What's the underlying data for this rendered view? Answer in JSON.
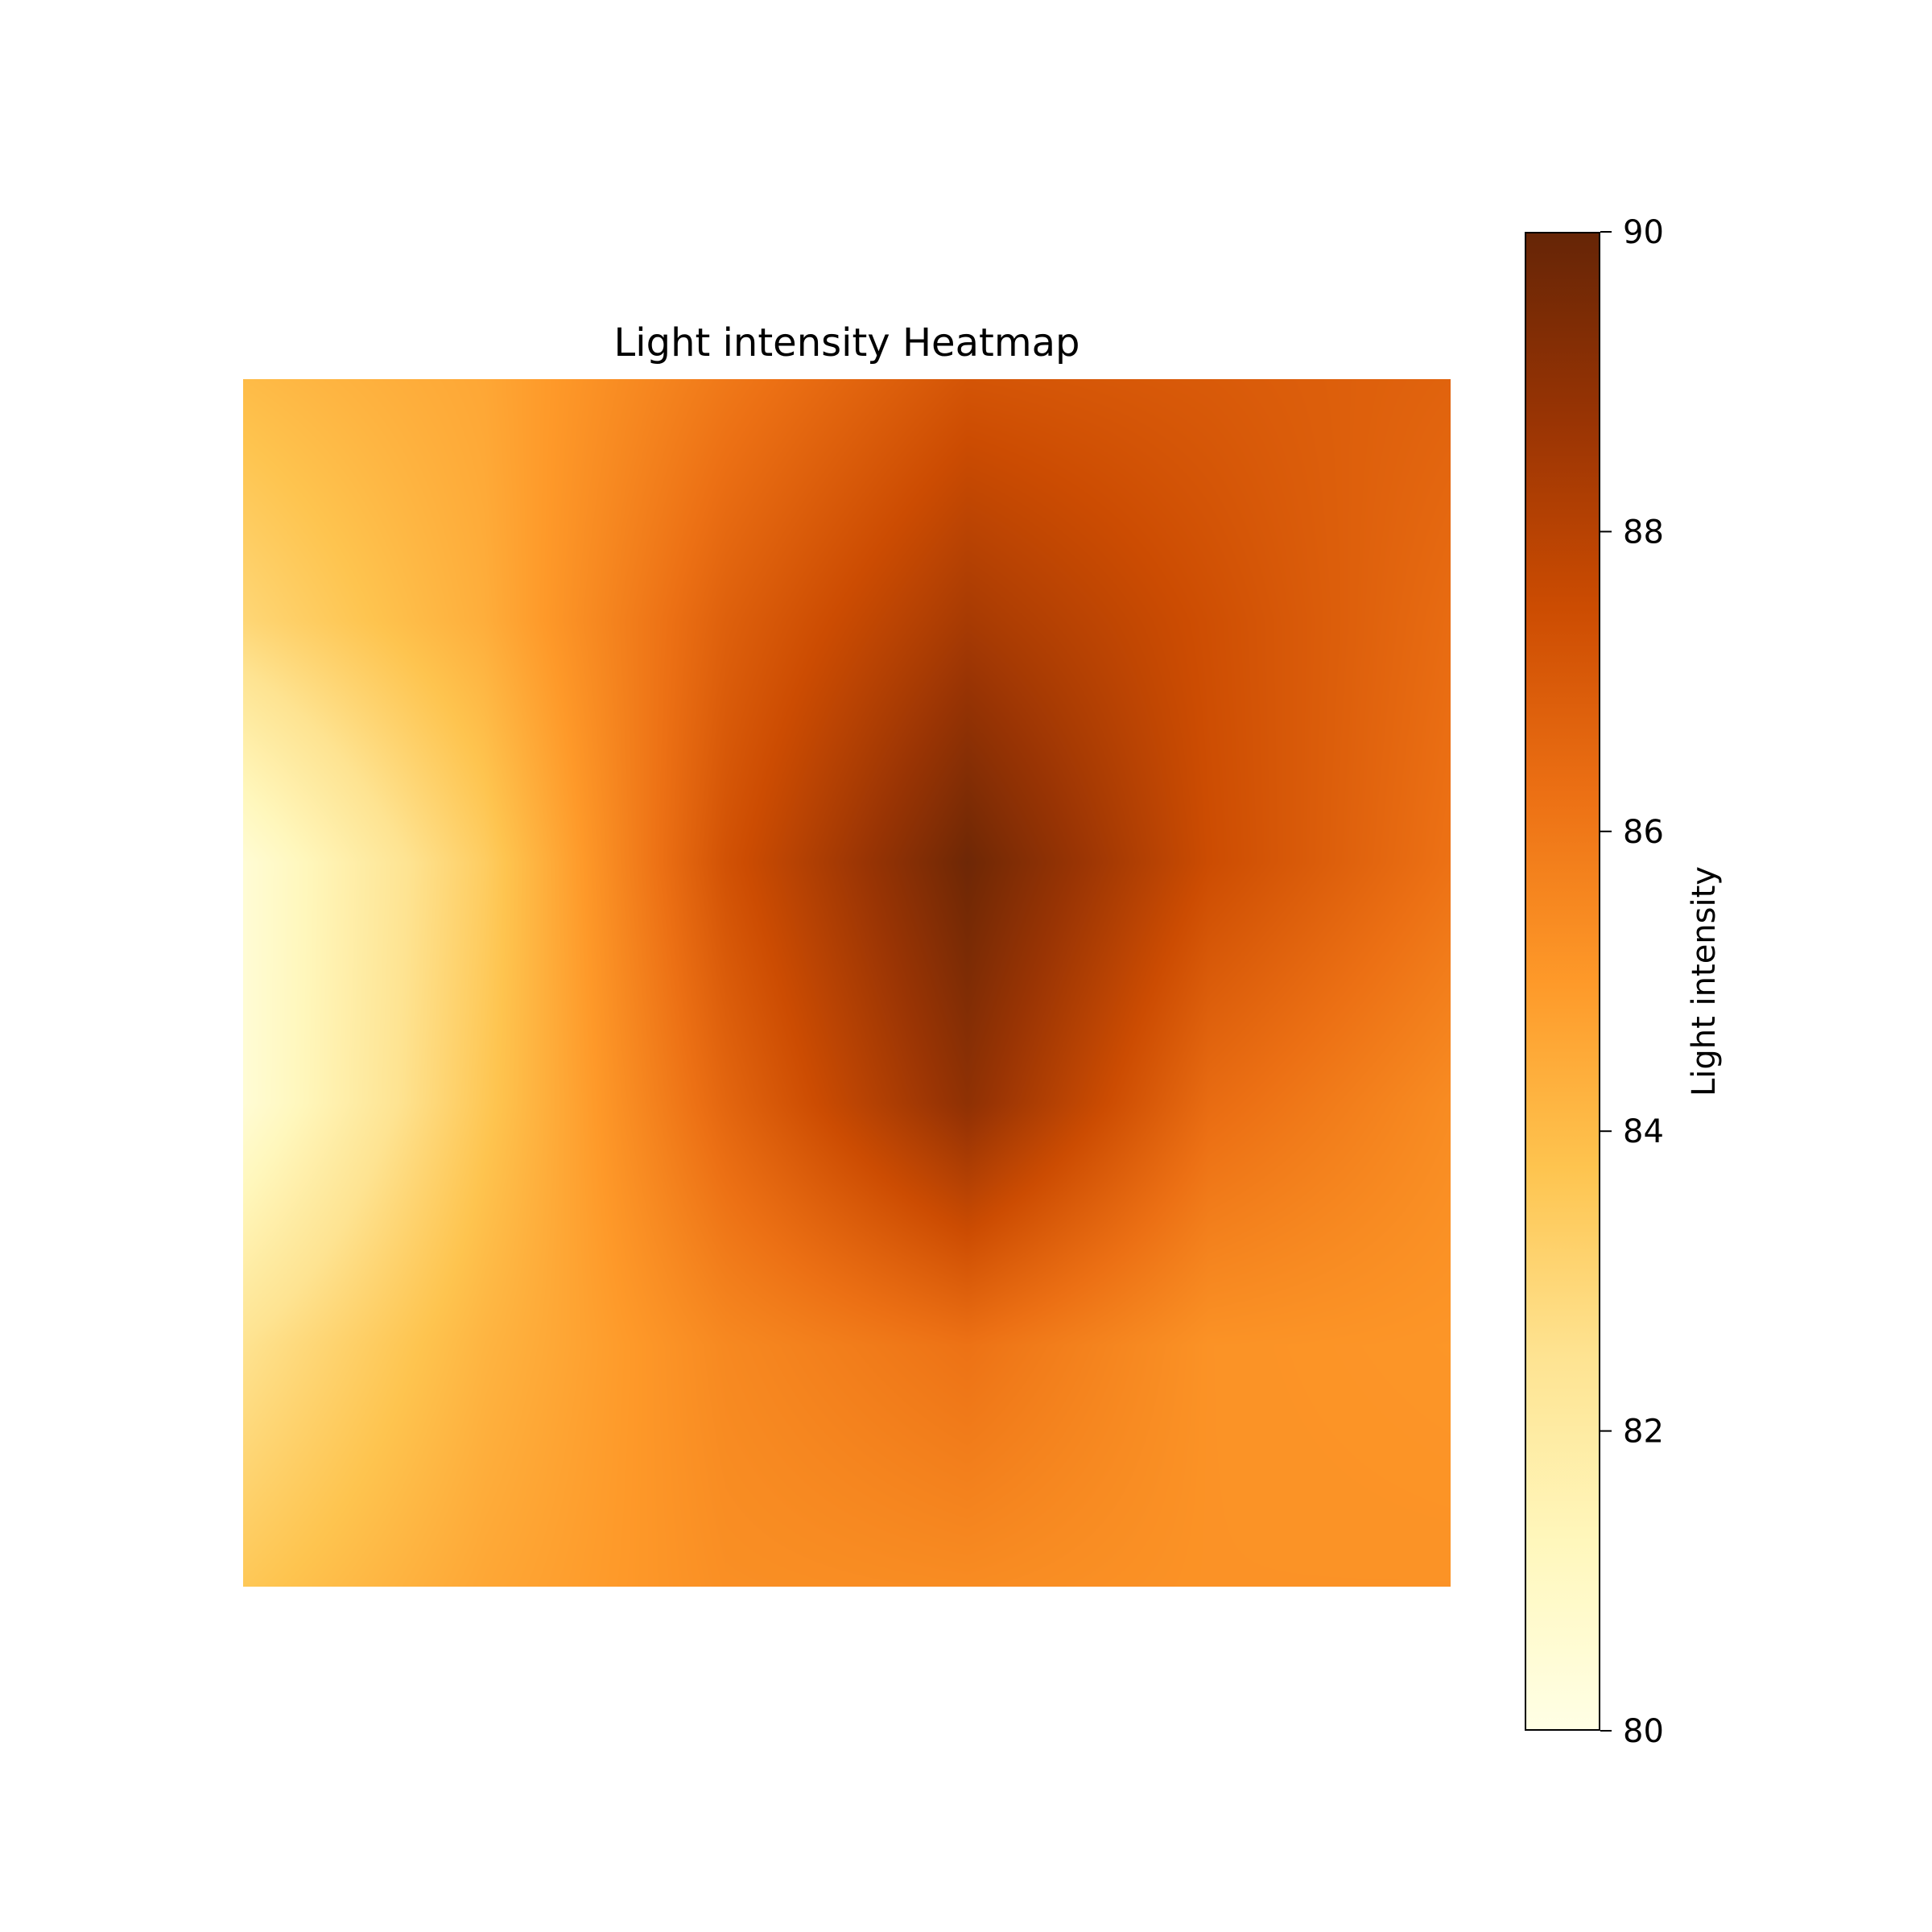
{
  "chart_data": {
    "type": "heatmap",
    "title": "Light intensity Heatmap",
    "colorbar": {
      "label": "Light intensity",
      "range": [
        80,
        90
      ],
      "ticks": [
        80,
        82,
        84,
        86,
        88,
        90
      ],
      "tick_labels": [
        "80",
        "82",
        "84",
        "86",
        "88",
        "90"
      ],
      "colormap": "YlOrBr",
      "colors": [
        "#ffffe5",
        "#fff7bc",
        "#fee391",
        "#fec44f",
        "#fe9929",
        "#ec7014",
        "#cc4c02",
        "#993404",
        "#662506"
      ]
    },
    "axes_visible": false,
    "grid": false,
    "z": [
      [
        84.0,
        84.6,
        86.0,
        87.2,
        87.0,
        86.7
      ],
      [
        83.0,
        84.4,
        86.8,
        88.4,
        87.4,
        86.4
      ],
      [
        80.5,
        83.4,
        87.3,
        89.8,
        87.5,
        86.2
      ],
      [
        80.5,
        83.6,
        86.6,
        89.0,
        86.4,
        85.4
      ],
      [
        82.5,
        84.2,
        85.5,
        86.2,
        85.2,
        85.1
      ],
      [
        83.6,
        84.6,
        85.3,
        85.4,
        85.2,
        85.2
      ]
    ]
  }
}
